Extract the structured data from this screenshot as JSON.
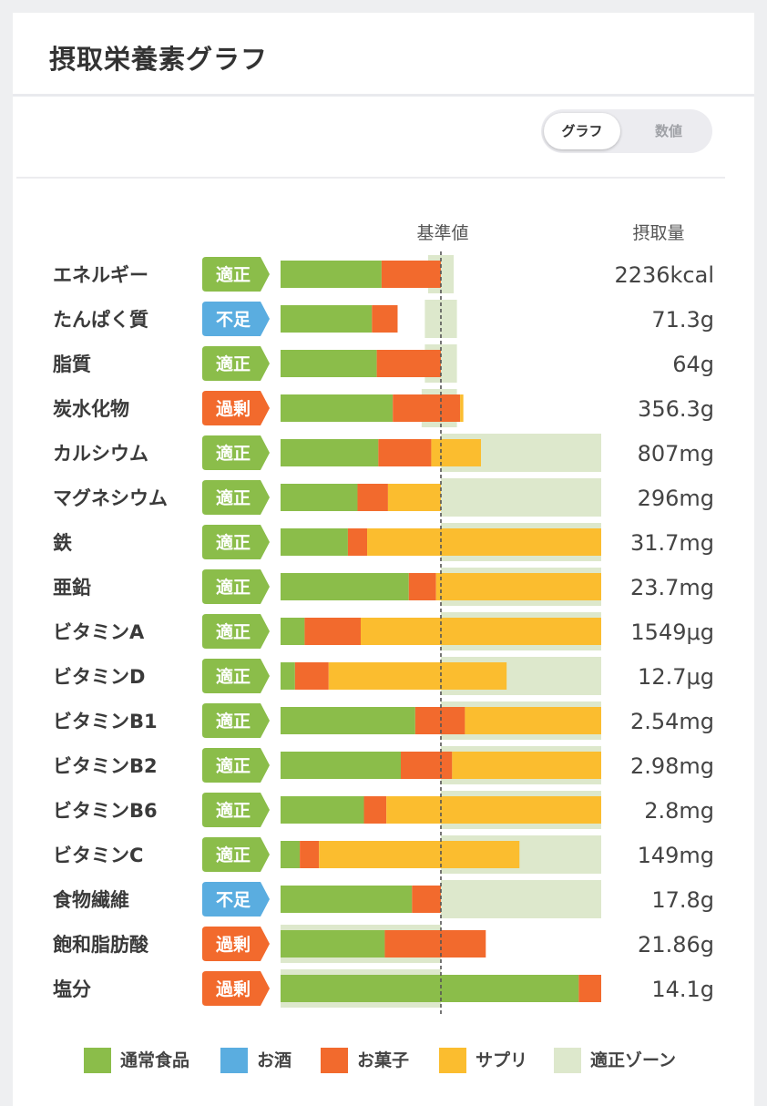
{
  "header": {
    "title": "摂取栄養素グラフ"
  },
  "view_toggle": {
    "options": [
      "グラフ",
      "数値"
    ],
    "selected": "グラフ"
  },
  "column_headers": {
    "baseline": "基準値",
    "intake": "摂取量"
  },
  "colors": {
    "normal_food": "#8bbd4a",
    "alcohol": "#5aade0",
    "snacks": "#f26a2d",
    "supplement": "#fbbd2f",
    "optimal_zone": "#dde8cc",
    "badge_optimal": "#8bbd4a",
    "badge_deficient": "#5aade0",
    "badge_excess": "#f26a2d"
  },
  "legend": [
    {
      "label": "通常食品",
      "color": "#8bbd4a"
    },
    {
      "label": "お酒",
      "color": "#5aade0"
    },
    {
      "label": "お菓子",
      "color": "#f26a2d"
    },
    {
      "label": "サプリ",
      "color": "#fbbd2f"
    },
    {
      "label": "適正ゾーン",
      "color": "#dde8cc"
    }
  ],
  "chart_data": {
    "type": "bar",
    "orientation": "horizontal",
    "stacked": true,
    "baseline_label": "基準値",
    "value_unit": "percent_of_baseline",
    "series": [
      {
        "name": "通常食品",
        "color": "#8bbd4a"
      },
      {
        "name": "お酒",
        "color": "#5aade0"
      },
      {
        "name": "お菓子",
        "color": "#f26a2d"
      },
      {
        "name": "サプリ",
        "color": "#fbbd2f"
      }
    ],
    "rows": [
      {
        "name": "エネルギー",
        "status": "適正",
        "status_type": "optimal",
        "intake": "2236kcal",
        "segments": [
          63,
          0,
          37,
          0
        ],
        "zone": [
          92,
          108
        ]
      },
      {
        "name": "たんぱく質",
        "status": "不足",
        "status_type": "deficient",
        "intake": "71.3g",
        "segments": [
          57,
          0,
          16,
          0
        ],
        "zone": [
          90,
          110
        ]
      },
      {
        "name": "脂質",
        "status": "適正",
        "status_type": "optimal",
        "intake": "64g",
        "segments": [
          60,
          0,
          40,
          0
        ],
        "zone": [
          90,
          110
        ]
      },
      {
        "name": "炭水化物",
        "status": "過剰",
        "status_type": "excess",
        "intake": "356.3g",
        "segments": [
          70,
          0,
          42,
          2
        ],
        "zone": [
          88,
          110
        ]
      },
      {
        "name": "カルシウム",
        "status": "適正",
        "status_type": "optimal",
        "intake": "807mg",
        "segments": [
          61,
          0,
          33,
          31
        ],
        "zone": [
          100,
          200
        ]
      },
      {
        "name": "マグネシウム",
        "status": "適正",
        "status_type": "optimal",
        "intake": "296mg",
        "segments": [
          48,
          0,
          19,
          33
        ],
        "zone": [
          100,
          200
        ]
      },
      {
        "name": "鉄",
        "status": "適正",
        "status_type": "optimal",
        "intake": "31.7mg",
        "segments": [
          42,
          0,
          12,
          146
        ],
        "zone": [
          100,
          200
        ]
      },
      {
        "name": "亜鉛",
        "status": "適正",
        "status_type": "optimal",
        "intake": "23.7mg",
        "segments": [
          80,
          0,
          17,
          103
        ],
        "zone": [
          100,
          200
        ]
      },
      {
        "name": "ビタミンA",
        "status": "適正",
        "status_type": "optimal",
        "intake": "1549μg",
        "segments": [
          15,
          0,
          35,
          150
        ],
        "zone": [
          100,
          200
        ]
      },
      {
        "name": "ビタミンD",
        "status": "適正",
        "status_type": "optimal",
        "intake": "12.7μg",
        "segments": [
          9,
          0,
          21,
          111
        ],
        "zone": [
          100,
          200
        ]
      },
      {
        "name": "ビタミンB1",
        "status": "適正",
        "status_type": "optimal",
        "intake": "2.54mg",
        "segments": [
          84,
          0,
          31,
          85
        ],
        "zone": [
          100,
          200
        ]
      },
      {
        "name": "ビタミンB2",
        "status": "適正",
        "status_type": "optimal",
        "intake": "2.98mg",
        "segments": [
          75,
          0,
          32,
          93
        ],
        "zone": [
          100,
          200
        ]
      },
      {
        "name": "ビタミンB6",
        "status": "適正",
        "status_type": "optimal",
        "intake": "2.8mg",
        "segments": [
          52,
          0,
          14,
          134
        ],
        "zone": [
          100,
          200
        ]
      },
      {
        "name": "ビタミンC",
        "status": "適正",
        "status_type": "optimal",
        "intake": "149mg",
        "segments": [
          12,
          0,
          12,
          125
        ],
        "zone": [
          100,
          200
        ]
      },
      {
        "name": "食物繊維",
        "status": "不足",
        "status_type": "deficient",
        "intake": "17.8g",
        "segments": [
          82,
          0,
          18,
          0
        ],
        "zone": [
          100,
          200
        ]
      },
      {
        "name": "飽和脂肪酸",
        "status": "過剰",
        "status_type": "excess",
        "intake": "21.86g",
        "segments": [
          65,
          0,
          63,
          0
        ],
        "zone": [
          0,
          100
        ]
      },
      {
        "name": "塩分",
        "status": "過剰",
        "status_type": "excess",
        "intake": "14.1g",
        "segments": [
          186,
          0,
          14,
          0
        ],
        "zone": [
          0,
          100
        ]
      }
    ]
  }
}
